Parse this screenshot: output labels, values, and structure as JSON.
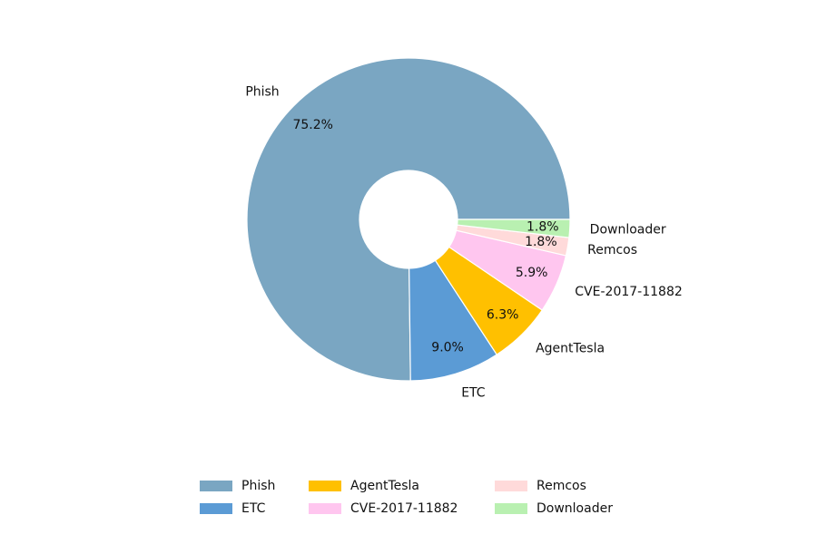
{
  "chart_data": {
    "type": "donut",
    "categories": [
      "Phish",
      "ETC",
      "AgentTesla",
      "CVE-2017-11882",
      "Remcos",
      "Downloader"
    ],
    "values": [
      75.2,
      9.0,
      6.3,
      5.9,
      1.8,
      1.8
    ],
    "value_labels": [
      "75.2%",
      "9.0%",
      "6.3%",
      "5.9%",
      "1.8%",
      "1.8%"
    ],
    "colors": [
      "#7aa6c2",
      "#5b9bd5",
      "#ffc000",
      "#ffc6ef",
      "#ffdada",
      "#b9f0b1"
    ],
    "legend": "bottom"
  }
}
